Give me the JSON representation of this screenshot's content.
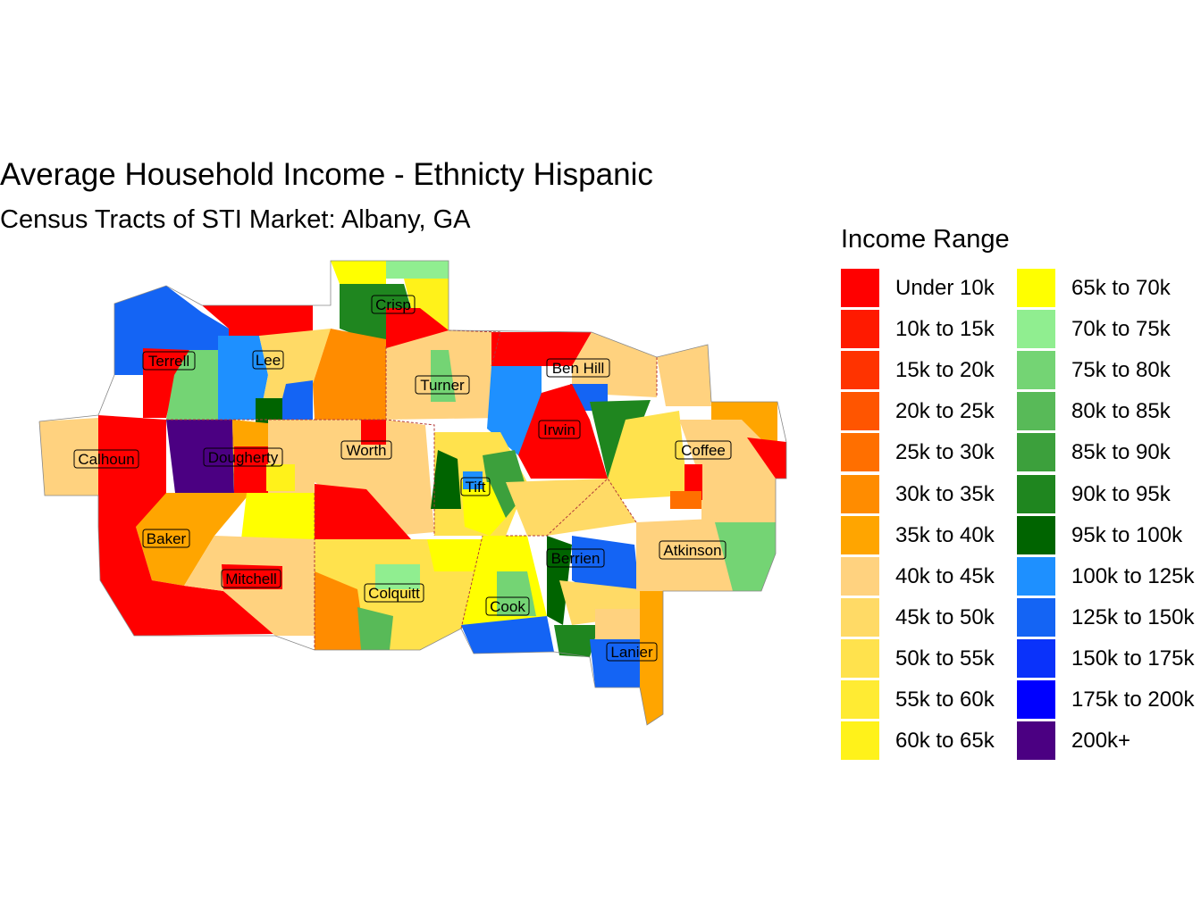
{
  "title": "Average Household Income - Ethnicty Hispanic",
  "subtitle": "Census Tracts of STI Market: Albany, GA",
  "legend": {
    "title": "Income Range",
    "items": [
      {
        "label": "Under 10k",
        "color": "#FF0000"
      },
      {
        "label": "10k to 15k",
        "color": "#FF1A00"
      },
      {
        "label": "15k to 20k",
        "color": "#FF3300"
      },
      {
        "label": "20k to 25k",
        "color": "#FF5500"
      },
      {
        "label": "25k to 30k",
        "color": "#FF6F00"
      },
      {
        "label": "30k to 35k",
        "color": "#FF8C00"
      },
      {
        "label": "35k to 40k",
        "color": "#FFA500"
      },
      {
        "label": "40k to 45k",
        "color": "#FFD27F"
      },
      {
        "label": "45k to 50k",
        "color": "#FFDA66"
      },
      {
        "label": "50k to 55k",
        "color": "#FFE24D"
      },
      {
        "label": "55k to 60k",
        "color": "#FFEB33"
      },
      {
        "label": "60k to 65k",
        "color": "#FFF21A"
      },
      {
        "label": "65k to 70k",
        "color": "#FFFF00"
      },
      {
        "label": "70k to 75k",
        "color": "#90EE90"
      },
      {
        "label": "75k to 80k",
        "color": "#74D474"
      },
      {
        "label": "80k to 85k",
        "color": "#58BA58"
      },
      {
        "label": "85k to 90k",
        "color": "#3CA03C"
      },
      {
        "label": "90k to 95k",
        "color": "#1F861F"
      },
      {
        "label": "95k to 100k",
        "color": "#006400"
      },
      {
        "label": "100k to 125k",
        "color": "#1E90FF"
      },
      {
        "label": "125k to 150k",
        "color": "#1464F4"
      },
      {
        "label": "150k to 175k",
        "color": "#0A32FA"
      },
      {
        "label": "175k to 200k",
        "color": "#0000FF"
      },
      {
        "label": "200k+",
        "color": "#4B0082"
      }
    ]
  },
  "counties": [
    "Crisp",
    "Terrell",
    "Lee",
    "Turner",
    "Ben Hill",
    "Irwin",
    "Worth",
    "Calhoun",
    "Dougherty",
    "Tift",
    "Coffee",
    "Baker",
    "Mitchell",
    "Berrien",
    "Atkinson",
    "Colquitt",
    "Cook",
    "Lanier"
  ]
}
